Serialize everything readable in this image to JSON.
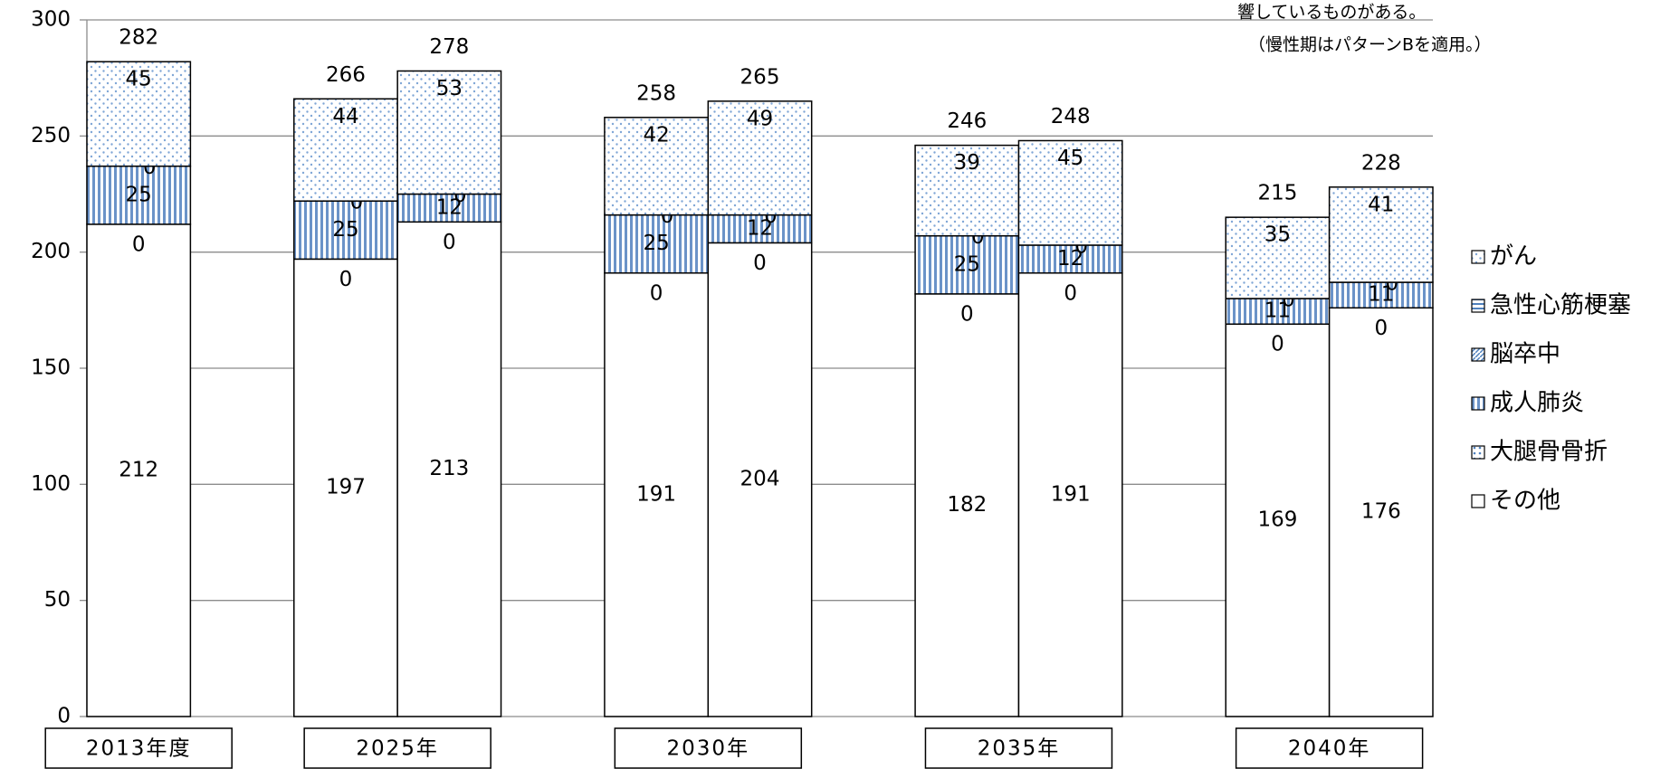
{
  "chart_data": {
    "type": "stacked-bar",
    "annotations": [
      "響しているものがある。",
      "（慢性期はパターンBを適用。）"
    ],
    "groups": [
      "2013年度",
      "2025年",
      "2030年",
      "2035年",
      "2040年"
    ],
    "group_sizes": [
      1,
      2,
      2,
      2,
      2
    ],
    "series": [
      {
        "name": "その他",
        "color": "#ffffff",
        "pattern": "none",
        "values": [
          212,
          197,
          213,
          191,
          204,
          182,
          191,
          169,
          176
        ]
      },
      {
        "name": "大腿骨骨折",
        "color": "#4f81bd",
        "pattern": "grid",
        "values": [
          0,
          0,
          0,
          0,
          0,
          0,
          0,
          0,
          0
        ]
      },
      {
        "name": "成人肺炎",
        "color": "#4f81bd",
        "pattern": "vertical",
        "values": [
          25,
          25,
          12,
          25,
          12,
          25,
          12,
          11,
          11
        ]
      },
      {
        "name": "脳卒中",
        "color": "#4f81bd",
        "pattern": "diagonal",
        "values": [
          0,
          0,
          0,
          0,
          0,
          0,
          0,
          0,
          0
        ]
      },
      {
        "name": "急性心筋梗塞",
        "color": "#4f81bd",
        "pattern": "horizontal",
        "values": [
          0,
          0,
          0,
          0,
          0,
          0,
          0,
          0,
          0
        ]
      },
      {
        "name": "がん",
        "color": "#4f81bd",
        "pattern": "dots",
        "values": [
          45,
          44,
          53,
          42,
          49,
          39,
          45,
          35,
          41
        ]
      }
    ],
    "totals": [
      282,
      266,
      278,
      258,
      265,
      246,
      248,
      215,
      228
    ],
    "ylim": [
      0,
      300
    ],
    "yticks": [
      0,
      50,
      100,
      150,
      200,
      250,
      300
    ],
    "grid": true,
    "legend": "right"
  }
}
